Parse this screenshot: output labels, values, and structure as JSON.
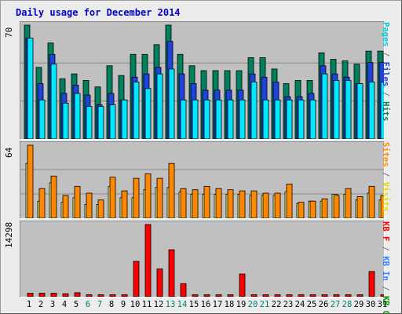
{
  "chart_data": {
    "title": "Daily usage for December 2014",
    "type": "bar",
    "categories": [
      "1",
      "2",
      "3",
      "4",
      "5",
      "6",
      "7",
      "8",
      "9",
      "10",
      "11",
      "12",
      "13",
      "14",
      "15",
      "16",
      "17",
      "18",
      "19",
      "20",
      "21",
      "22",
      "23",
      "24",
      "25",
      "26",
      "27",
      "28",
      "29",
      "30",
      "31"
    ],
    "weekend_days": [
      6,
      7,
      13,
      14,
      20,
      21,
      27,
      28
    ],
    "panels": [
      {
        "id": "hits-files-pages",
        "ymax_label": "70",
        "ymax": 70,
        "gridlines": [
          0.333,
          0.667
        ],
        "series": [
          {
            "name": "Hits",
            "color": "#00805c",
            "values": [
              70,
              44,
              59,
              37,
              40,
              36,
              32,
              45,
              39,
              52,
              52,
              58,
              70,
              52,
              45,
              42,
              42,
              42,
              42,
              50,
              50,
              43,
              34,
              36,
              36,
              53,
              49,
              48,
              46,
              54,
              54
            ]
          },
          {
            "name": "Files",
            "color": "#1f42d9",
            "values": [
              62,
              34,
              52,
              28,
              33,
              27,
              21,
              28,
              24,
              38,
              40,
              44,
              60,
              40,
              34,
              30,
              30,
              30,
              30,
              40,
              38,
              35,
              26,
              26,
              28,
              45,
              40,
              38,
              34,
              47,
              47
            ]
          },
          {
            "name": "Pages",
            "color": "#00e8ff",
            "values": [
              62,
              24,
              46,
              22,
              28,
              20,
              20,
              21,
              24,
              35,
              31,
              40,
              43,
              24,
              24,
              24,
              24,
              24,
              24,
              35,
              24,
              24,
              24,
              24,
              24,
              40,
              36,
              36,
              34,
              35,
              35
            ]
          }
        ]
      },
      {
        "id": "visits-sites",
        "ymax_label": "64",
        "ymax": 64,
        "gridlines": [
          0.333,
          0.667
        ],
        "series": [
          {
            "name": "Visits",
            "color": "#ffff80",
            "values": [
              48,
              15,
              31,
              14,
              18,
              12,
              12,
              28,
              18,
              18,
              25,
              27,
              27,
              23,
              21,
              21,
              21,
              21,
              21,
              20,
              20,
              20,
              23,
              13,
              15,
              15,
              21,
              21,
              16,
              22,
              16
            ]
          },
          {
            "name": "Sites",
            "color": "#ff8800",
            "values": [
              64,
              26,
              37,
              20,
              28,
              22,
              16,
              36,
              24,
              35,
              39,
              35,
              48,
              26,
              25,
              28,
              26,
              25,
              24,
              24,
              22,
              22,
              30,
              14,
              15,
              17,
              20,
              26,
              19,
              28,
              20
            ]
          }
        ]
      },
      {
        "id": "kbytes",
        "ymax_label": "14298",
        "ymax": 14298,
        "gridlines": [],
        "series": [
          {
            "name": "KB In",
            "color": "#3080ff",
            "values": [
              0,
              0,
              0,
              0,
              0,
              0,
              0,
              0,
              0,
              0,
              0,
              0,
              0,
              0,
              0,
              0,
              0,
              0,
              0,
              0,
              0,
              0,
              0,
              0,
              0,
              0,
              0,
              0,
              0,
              0,
              0
            ]
          },
          {
            "name": "KB Out",
            "color": "#00a000",
            "values": [
              0,
              0,
              0,
              0,
              0,
              0,
              0,
              0,
              0,
              0,
              0,
              0,
              0,
              0,
              0,
              0,
              0,
              0,
              0,
              0,
              0,
              0,
              0,
              0,
              0,
              0,
              0,
              0,
              0,
              0,
              0
            ]
          },
          {
            "name": "KB F",
            "color": "#ff0000",
            "values": [
              700,
              700,
              700,
              600,
              800,
              400,
              400,
              400,
              400,
              7000,
              14298,
              5500,
              9300,
              2600,
              400,
              400,
              400,
              400,
              4500,
              400,
              400,
              400,
              400,
              400,
              400,
              400,
              400,
              400,
              400,
              5000,
              400
            ]
          }
        ]
      }
    ]
  },
  "legends": {
    "panel1": [
      {
        "text": "Pages",
        "color": "#00c8d8"
      },
      {
        "text": " / ",
        "color": "#777777"
      },
      {
        "text": "Files",
        "color": "#1f42d9"
      },
      {
        "text": " / ",
        "color": "#777777"
      },
      {
        "text": "Hits",
        "color": "#00805c"
      }
    ],
    "panel2": [
      {
        "text": "Sites",
        "color": "#ff8800"
      },
      {
        "text": " / ",
        "color": "#777777"
      },
      {
        "text": "Visits",
        "color": "#e6d800"
      }
    ],
    "panel3": [
      {
        "text": "KB F",
        "color": "#ff0000"
      },
      {
        "text": " / ",
        "color": "#777777"
      },
      {
        "text": "KB In",
        "color": "#3080ff"
      },
      {
        "text": " / ",
        "color": "#777777"
      },
      {
        "text": "KB Out",
        "color": "#00a000"
      }
    ]
  },
  "colors": {
    "weekday_label": "#000000",
    "weekend_label": "#00806a"
  }
}
